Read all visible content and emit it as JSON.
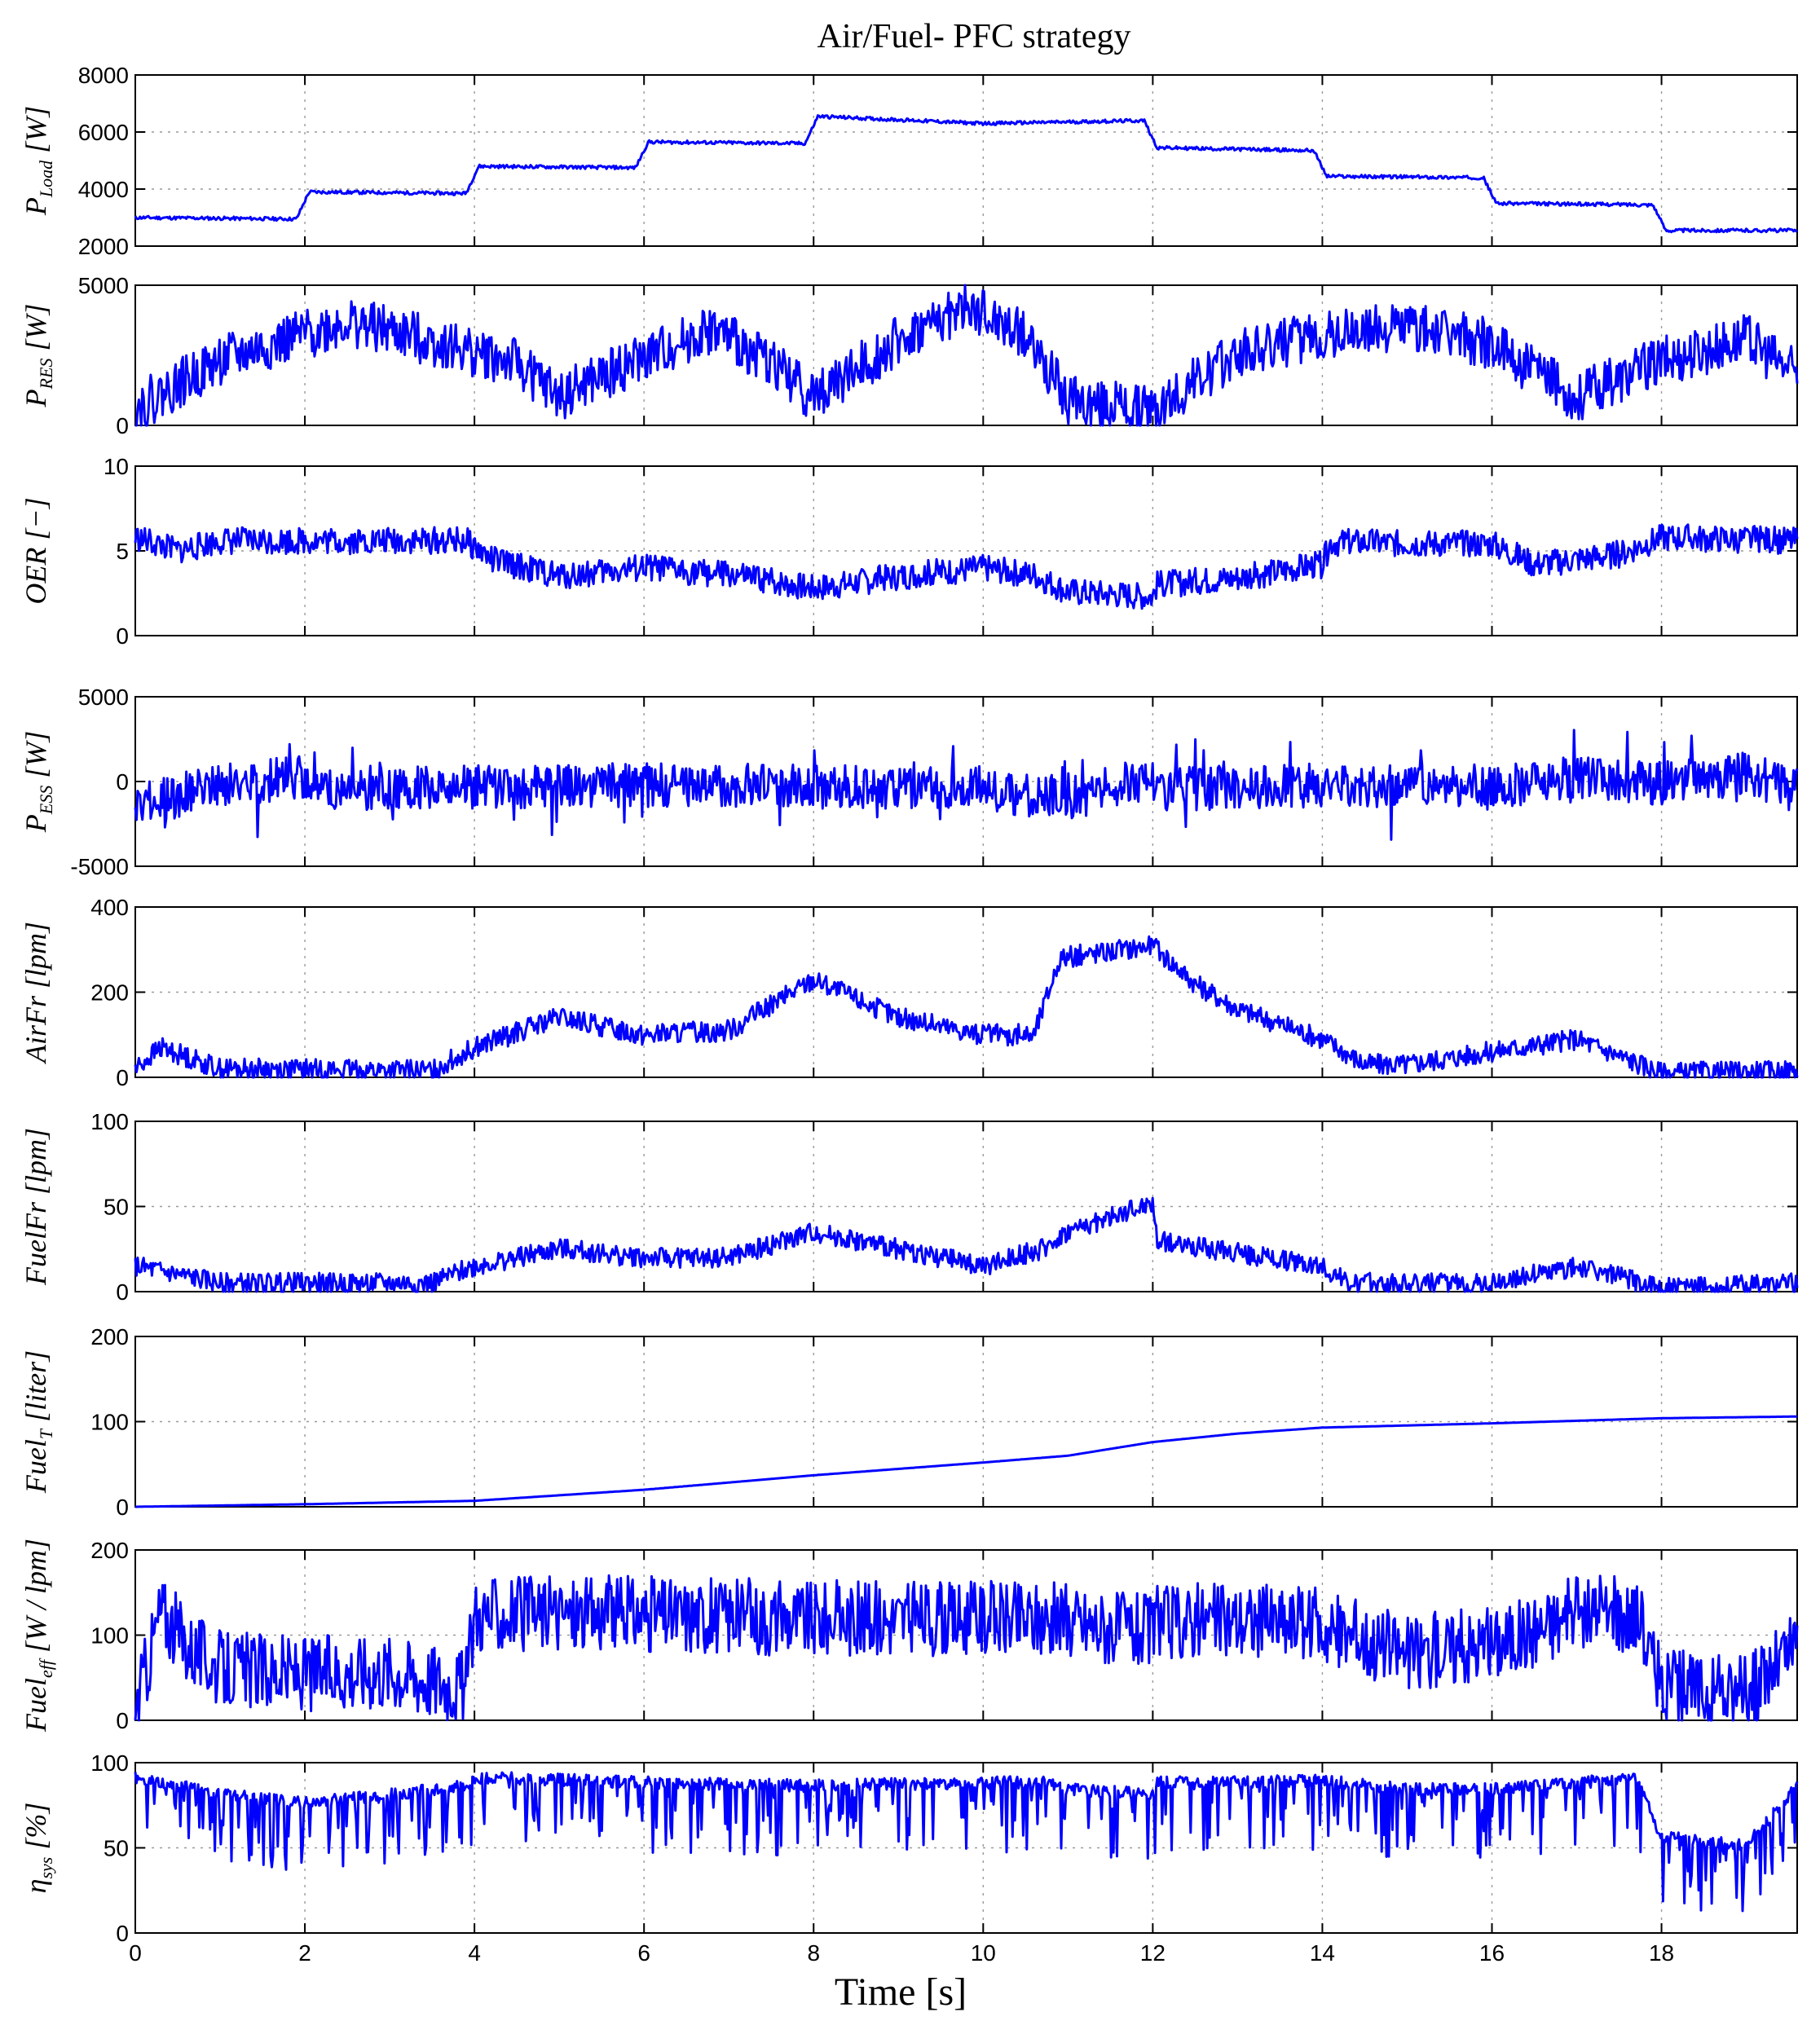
{
  "chart_data": {
    "type": "line",
    "title": "Air/Fuel- PFC strategy",
    "xlabel": "Time [s]",
    "xlim": [
      0,
      19.6
    ],
    "xticks": [
      0,
      2,
      4,
      6,
      8,
      10,
      12,
      14,
      16,
      18
    ],
    "grid": true,
    "color": "#0000ff",
    "panels": [
      {
        "id": "pload",
        "ylabel_main": "P",
        "ylabel_sub": "Load",
        "ylabel_unit": " [W]",
        "ylim": [
          2000,
          8000
        ],
        "yticks": [
          2000,
          4000,
          6000,
          8000
        ],
        "points": [
          [
            0,
            3000
          ],
          [
            1.9,
            2950
          ],
          [
            2.05,
            3900
          ],
          [
            3.9,
            3850
          ],
          [
            4.05,
            4800
          ],
          [
            5.9,
            4750
          ],
          [
            6.05,
            5650
          ],
          [
            7.9,
            5600
          ],
          [
            8.05,
            6550
          ],
          [
            10,
            6300
          ],
          [
            11.9,
            6400
          ],
          [
            12.05,
            5450
          ],
          [
            13.9,
            5350
          ],
          [
            14.05,
            4450
          ],
          [
            15.9,
            4400
          ],
          [
            16.05,
            3500
          ],
          [
            17.9,
            3450
          ],
          [
            18.05,
            2550
          ],
          [
            19.6,
            2550
          ]
        ],
        "noise": 60,
        "spikes": 0,
        "seed": 11
      },
      {
        "id": "pres",
        "ylabel_main": "P",
        "ylabel_sub": "RES",
        "ylabel_unit": " [W]",
        "ylim": [
          0,
          5000
        ],
        "yticks": [
          0,
          5000
        ],
        "points": [
          [
            0,
            600
          ],
          [
            1,
            2300
          ],
          [
            2.5,
            3700
          ],
          [
            3.5,
            3000
          ],
          [
            4.5,
            2200
          ],
          [
            5,
            1000
          ],
          [
            6,
            2400
          ],
          [
            6.8,
            3400
          ],
          [
            7.5,
            2300
          ],
          [
            8,
            1000
          ],
          [
            9,
            3000
          ],
          [
            9.8,
            4200
          ],
          [
            10.5,
            3200
          ],
          [
            11,
            900
          ],
          [
            12,
            500
          ],
          [
            13,
            2600
          ],
          [
            14,
            3200
          ],
          [
            15,
            3600
          ],
          [
            16,
            2900
          ],
          [
            17,
            1000
          ],
          [
            18,
            2300
          ],
          [
            19,
            3100
          ],
          [
            19.6,
            1800
          ]
        ],
        "noise": 900,
        "spikes": 0,
        "seed": 22
      },
      {
        "id": "oer",
        "ylabel_main": "OER",
        "ylabel_sub": "",
        "ylabel_unit": " [−]",
        "ylim": [
          0,
          10
        ],
        "yticks": [
          0,
          5,
          10
        ],
        "points": [
          [
            0,
            5.8
          ],
          [
            0.5,
            5
          ],
          [
            1,
            5.6
          ],
          [
            3.9,
            5.6
          ],
          [
            4.2,
            4.5
          ],
          [
            5,
            3.5
          ],
          [
            6,
            4
          ],
          [
            7,
            3.6
          ],
          [
            8,
            2.8
          ],
          [
            9,
            3.5
          ],
          [
            10,
            4
          ],
          [
            10.6,
            3.6
          ],
          [
            11,
            2.6
          ],
          [
            12,
            2.3
          ],
          [
            12.05,
            3
          ],
          [
            13,
            3.4
          ],
          [
            14,
            4.2
          ],
          [
            14.1,
            5.5
          ],
          [
            16,
            5.4
          ],
          [
            16.5,
            4.2
          ],
          [
            17.5,
            4.8
          ],
          [
            18,
            5.8
          ],
          [
            19.6,
            5.6
          ]
        ],
        "noise": 0.8,
        "spikes": 0,
        "seed": 33
      },
      {
        "id": "pess",
        "ylabel_main": "P",
        "ylabel_sub": "ESS",
        "ylabel_unit": " [W]",
        "ylim": [
          -5000,
          5000
        ],
        "yticks": [
          -5000,
          0,
          5000
        ],
        "points": [
          [
            0,
            -1500
          ],
          [
            1,
            -200
          ],
          [
            2,
            300
          ],
          [
            2.1,
            -500
          ],
          [
            4,
            -300
          ],
          [
            6,
            -200
          ],
          [
            8,
            -300
          ],
          [
            10,
            -500
          ],
          [
            11,
            -1000
          ],
          [
            12,
            200
          ],
          [
            12.05,
            -500
          ],
          [
            14,
            -200
          ],
          [
            16,
            -400
          ],
          [
            17,
            300
          ],
          [
            18,
            -100
          ],
          [
            19,
            500
          ],
          [
            19.6,
            -500
          ]
        ],
        "noise": 1300,
        "spikes": 0.06,
        "spike_amp": 2500,
        "seed": 44
      },
      {
        "id": "airfr",
        "ylabel_main": "AirFr",
        "ylabel_sub": "",
        "ylabel_unit": " [lpm]",
        "ylim": [
          0,
          400
        ],
        "yticks": [
          0,
          200,
          400
        ],
        "points": [
          [
            0,
            20
          ],
          [
            0.3,
            70
          ],
          [
            1,
            20
          ],
          [
            3.5,
            15
          ],
          [
            4,
            70
          ],
          [
            5,
            140
          ],
          [
            6,
            100
          ],
          [
            7,
            110
          ],
          [
            8,
            230
          ],
          [
            9,
            140
          ],
          [
            10,
            100
          ],
          [
            10.6,
            100
          ],
          [
            10.9,
            280
          ],
          [
            12,
            310
          ],
          [
            12.5,
            220
          ],
          [
            13,
            160
          ],
          [
            14,
            90
          ],
          [
            14.5,
            30
          ],
          [
            15,
            30
          ],
          [
            16,
            60
          ],
          [
            17,
            90
          ],
          [
            18,
            10
          ],
          [
            19.6,
            15
          ]
        ],
        "noise": 25,
        "spikes": 0,
        "seed": 55
      },
      {
        "id": "fuelfr",
        "ylabel_main": "FuelFr",
        "ylabel_sub": "",
        "ylabel_unit": " [lpm]",
        "ylim": [
          0,
          100
        ],
        "yticks": [
          0,
          50,
          100
        ],
        "points": [
          [
            0,
            15
          ],
          [
            1,
            5
          ],
          [
            3.5,
            5
          ],
          [
            4,
            15
          ],
          [
            5,
            25
          ],
          [
            6,
            20
          ],
          [
            7,
            20
          ],
          [
            8,
            35
          ],
          [
            9,
            25
          ],
          [
            10,
            15
          ],
          [
            10.7,
            25
          ],
          [
            11,
            35
          ],
          [
            12,
            52
          ],
          [
            12.05,
            30
          ],
          [
            14,
            15
          ],
          [
            14.3,
            5
          ],
          [
            16,
            5
          ],
          [
            17,
            15
          ],
          [
            18,
            2
          ],
          [
            19.6,
            5
          ]
        ],
        "noise": 6,
        "spikes": 0,
        "seed": 66
      },
      {
        "id": "fuelt",
        "ylabel_main": "Fuel",
        "ylabel_sub": "T",
        "ylabel_unit": " [liter]",
        "ylim": [
          0,
          200
        ],
        "yticks": [
          0,
          100,
          200
        ],
        "points": [
          [
            0,
            0
          ],
          [
            2,
            3
          ],
          [
            4,
            7
          ],
          [
            6,
            20
          ],
          [
            8,
            37
          ],
          [
            10,
            52
          ],
          [
            11,
            60
          ],
          [
            12,
            76
          ],
          [
            13,
            86
          ],
          [
            14,
            93
          ],
          [
            16,
            98
          ],
          [
            18,
            104
          ],
          [
            19.6,
            106
          ]
        ],
        "noise": 0,
        "spikes": 0,
        "seed": 77
      },
      {
        "id": "fueleff",
        "ylabel_main": "Fuel",
        "ylabel_sub": "eff",
        "ylabel_unit": " [W / lpm]",
        "ylim": [
          0,
          200
        ],
        "yticks": [
          0,
          100,
          200
        ],
        "points": [
          [
            0,
            10
          ],
          [
            0.3,
            130
          ],
          [
            0.6,
            90
          ],
          [
            1,
            60
          ],
          [
            2,
            55
          ],
          [
            3,
            60
          ],
          [
            3.9,
            40
          ],
          [
            4,
            125
          ],
          [
            6,
            125
          ],
          [
            8,
            120
          ],
          [
            10,
            120
          ],
          [
            10.7,
            120
          ],
          [
            12,
            105
          ],
          [
            12.05,
            115
          ],
          [
            13,
            120
          ],
          [
            14,
            110
          ],
          [
            15,
            80
          ],
          [
            16,
            90
          ],
          [
            17,
            125
          ],
          [
            17.7,
            125
          ],
          [
            18,
            40
          ],
          [
            19,
            30
          ],
          [
            19.6,
            90
          ]
        ],
        "noise": 45,
        "spikes": 0,
        "seed": 88
      },
      {
        "id": "etasys",
        "ylabel_main": "η",
        "ylabel_sub": "sys",
        "ylabel_unit": " [%]",
        "ylim": [
          0,
          100
        ],
        "yticks": [
          0,
          50,
          100
        ],
        "points": [
          [
            0,
            95
          ],
          [
            0.5,
            90
          ],
          [
            1,
            85
          ],
          [
            2,
            80
          ],
          [
            3,
            85
          ],
          [
            3.9,
            90
          ],
          [
            4,
            95
          ],
          [
            6,
            92
          ],
          [
            8,
            90
          ],
          [
            10,
            92
          ],
          [
            10.7,
            92
          ],
          [
            11,
            88
          ],
          [
            12,
            85
          ],
          [
            12.05,
            92
          ],
          [
            14,
            93
          ],
          [
            15,
            88
          ],
          [
            16,
            88
          ],
          [
            17,
            92
          ],
          [
            17.7,
            94
          ],
          [
            18,
            60
          ],
          [
            19,
            55
          ],
          [
            19.6,
            90
          ]
        ],
        "noise": 18,
        "spikes": 0,
        "down_only": true,
        "seed": 99
      }
    ]
  }
}
